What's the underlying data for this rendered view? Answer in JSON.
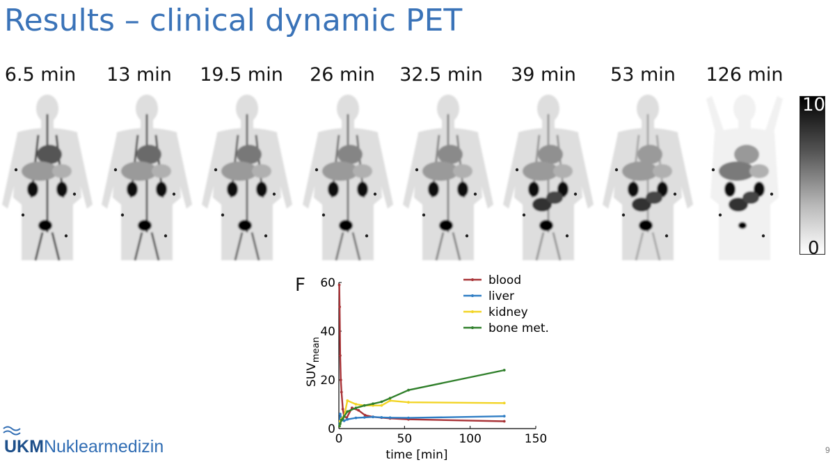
{
  "slide": {
    "title": "Results – clinical dynamic PET",
    "page_number": "9",
    "logo": {
      "ukm": "UKM",
      "department": "Nuklearmedizin"
    }
  },
  "pet_frames": [
    {
      "label": "6.5 min"
    },
    {
      "label": "13 min"
    },
    {
      "label": "19.5 min"
    },
    {
      "label": "26 min"
    },
    {
      "label": "32.5 min"
    },
    {
      "label": "39 min"
    },
    {
      "label": "53 min"
    },
    {
      "label": "126 min"
    }
  ],
  "colorbar": {
    "max": "10",
    "min": "0"
  },
  "chart_data": {
    "type": "line",
    "panel_label": "F",
    "title": "",
    "xlabel": "time [min]",
    "ylabel": "SUV",
    "ylabel_sub": "mean",
    "xlim": [
      0,
      150
    ],
    "ylim": [
      0,
      60
    ],
    "xticks": [
      0,
      50,
      100,
      150
    ],
    "yticks": [
      0,
      20,
      40,
      60
    ],
    "grid": false,
    "legend_position": "top-right",
    "series": [
      {
        "name": "blood",
        "color": "#a83236",
        "x": [
          0.3,
          0.6,
          1,
          1.5,
          2,
          3,
          4,
          6,
          10,
          15,
          20,
          26,
          32.5,
          39,
          53,
          126
        ],
        "y": [
          59,
          50,
          30,
          20,
          15,
          8,
          5,
          4.5,
          8.5,
          7.5,
          5.5,
          4.8,
          4.5,
          4.2,
          3.8,
          3.0
        ]
      },
      {
        "name": "liver",
        "color": "#2e7dc4",
        "x": [
          0.5,
          1,
          2,
          3,
          4,
          6.5,
          13,
          19.5,
          26,
          32.5,
          39,
          53,
          126
        ],
        "y": [
          2,
          6,
          4,
          3.5,
          3.2,
          3.8,
          4.4,
          4.6,
          4.8,
          4.6,
          4.5,
          4.4,
          5.1
        ]
      },
      {
        "name": "kidney",
        "color": "#f2d424",
        "x": [
          0.5,
          1,
          2,
          3,
          4,
          6.5,
          13,
          19.5,
          26,
          32.5,
          39,
          53,
          126
        ],
        "y": [
          1,
          3,
          4,
          4.5,
          5,
          11.5,
          10,
          9.5,
          9.5,
          9.5,
          11.5,
          10.8,
          10.5
        ]
      },
      {
        "name": "bone met.",
        "color": "#2f7f2a",
        "x": [
          0.5,
          1,
          2,
          3,
          4,
          6.5,
          13,
          19.5,
          26,
          32.5,
          39,
          53,
          126
        ],
        "y": [
          1,
          2,
          3.5,
          4,
          5,
          7,
          8.5,
          9.5,
          10.2,
          11,
          12.5,
          15.8,
          24
        ]
      }
    ]
  }
}
